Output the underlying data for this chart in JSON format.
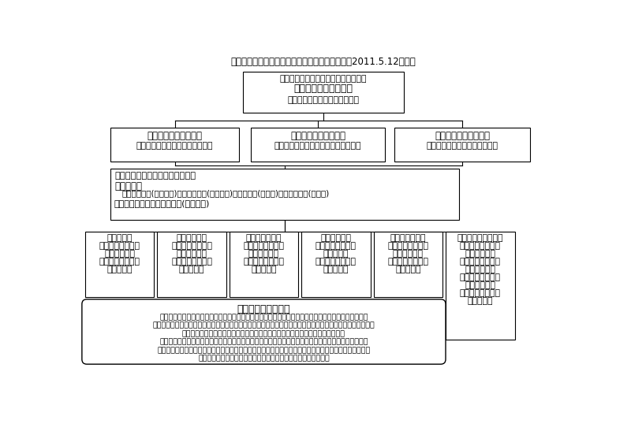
{
  "title": "東日本大震災聴覚障害者救援中央本部組織図　（2011.5.12現在）",
  "bg_color": "#ffffff",
  "main_box_lines": [
    "東日本大震災聴覚障害者救援中央本部",
    "本部長　石野富志三郎",
    "（全日本ろうあ連盟　理事長）"
  ],
  "vice_boxes": [
    [
      "副本部長　小中　栄一",
      "（全日本ろうあ連盟　副理事長）"
    ],
    [
      "副本部長　石川　芳郎",
      "（全国手話通訳問題研究会　副会長）"
    ],
    [
      "副本部長　小椋　英子",
      "（日本手話通訳士協会　会長）"
    ]
  ],
  "office_lines": [
    "事務総括　久松三二（全日ろう）",
    "事務副総括",
    "　中村　懐策(全日ろう)・小出真一郎(全日ろう)・伊藤　正(全通研)・新中理恵子(士協会)",
    "会計担当　【実】長谷川芳弘(全日ろう)"
  ],
  "dept_titles": [
    "義援金担当",
    "物資支援担当",
    "ろう者支援担当",
    "手話通訳担当",
    "情報・広報担当",
    "医療・メンタル担当"
  ],
  "dept_contents": [
    [
      "【実】小椋　武夫",
      "（全日ろう）",
      "【副】橋本　博行",
      "（全通研）"
    ],
    [
      "【実】吉原　孝治",
      "（全日ろう）",
      "【副】竹内　恵子",
      "（全通研）"
    ],
    [
      "【実】宮本　一郎",
      "（全日ろう）",
      "【副】中原　啓子",
      "（全通研）"
    ],
    [
      "【実】浅井　貞子",
      "（全通研）",
      "【副】江原こう平",
      "（全通研）"
    ],
    [
      "【実】河原　雅浩",
      "（全日ろう）",
      "【副】近藤　幸一",
      "（全通研）"
    ],
    [
      "【実】稲川　和彦",
      "（全日ろう）",
      "【副】小海　秀純",
      "（全日ろう）",
      "【副】矢野　耕二",
      "（全日ろう）",
      "【副】田中　　清",
      "（士協会）"
    ]
  ],
  "partner_title": "協力団体（順不同）",
  "partner_lines": [
    "特定非営利活動法人全国聴覚障害者情報提供施設協議会／特定非営利活動法人ＣＳ障害者放送統一機構",
    "全国聴覚障害者教職員協議会／日本聴覚障害者ソーシャルワーカー協会／社会福祉法人全国手話研修センター",
    "社団法人全日本難聴者・中途失聴者団体連合会／全国ろうあヘルパー連絡協議会",
    "聴覚障害者の医療に関心をもつ医療関係者のネットワーク／日本財団／社会福祉法人全国盲ろう者協会",
    "全国ろう重複障害者施設連絡協議会／全国高齢聴覚障害者福祉施設協議会／全国盲ろう難聴児施設協議会",
    "全国ろう学校長会／特定非営利活動法人全国要約筆記問題研究会"
  ]
}
